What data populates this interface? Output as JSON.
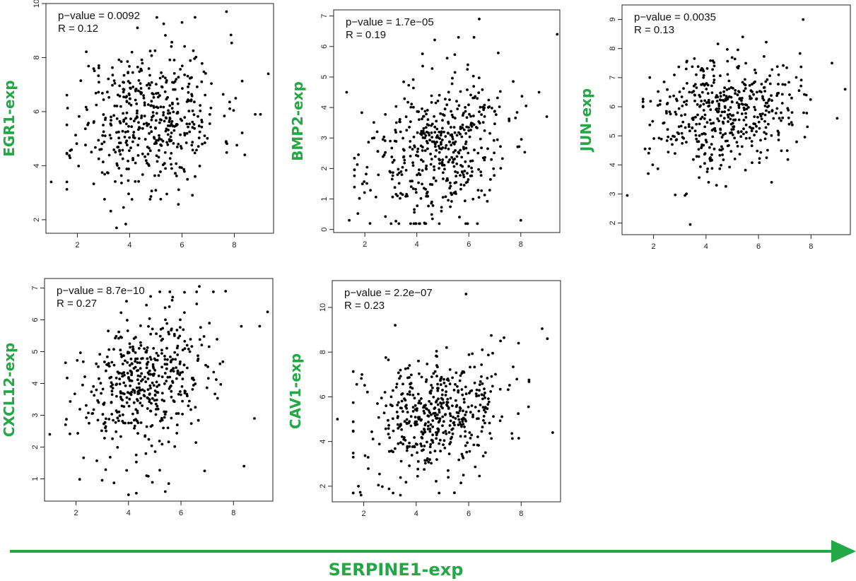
{
  "accent_color": "#22a845",
  "x_label": "SERPINE1-exp",
  "chart_data": [
    {
      "type": "scatter",
      "ylabel": "EGR1-exp",
      "p_value_text": "p−value = 0.0092",
      "r_text": "R = 0.12",
      "xlim": [
        0.8,
        9.5
      ],
      "ylim": [
        1.5,
        10
      ],
      "xticks": [
        2,
        4,
        6,
        8
      ],
      "yticks": [
        2,
        4,
        6,
        8,
        10
      ],
      "n_points": 480,
      "trend": 0.12,
      "y_mean": 5.8,
      "y_sd": 1.35,
      "seed": 11,
      "points": [
        [
          7.7,
          9.7
        ],
        [
          3.5,
          1.7
        ],
        [
          1.0,
          3.4
        ],
        [
          9.3,
          7.4
        ],
        [
          6.0,
          9.3
        ],
        [
          5.3,
          9.25
        ],
        [
          4.3,
          9.1
        ],
        [
          9.0,
          5.9
        ],
        [
          8.8,
          5.9
        ],
        [
          8.4,
          4.4
        ],
        [
          1.6,
          3.4
        ],
        [
          6.5,
          3.6
        ]
      ]
    },
    {
      "type": "scatter",
      "ylabel": "BMP2-exp",
      "p_value_text": "p−value = 1.7e−05",
      "r_text": "R = 0.19",
      "xlim": [
        0.8,
        9.5
      ],
      "ylim": [
        -0.1,
        7.2
      ],
      "xticks": [
        2,
        4,
        6,
        8
      ],
      "yticks": [
        0,
        1,
        2,
        3,
        4,
        5,
        6,
        7
      ],
      "n_points": 480,
      "trend": 0.19,
      "y_mean": 2.6,
      "y_sd": 1.2,
      "seed": 23,
      "points": [
        [
          6.4,
          6.9
        ],
        [
          9.4,
          6.4
        ],
        [
          5.6,
          6.3
        ],
        [
          6.2,
          6.3
        ],
        [
          1.3,
          4.5
        ],
        [
          8.0,
          0.3
        ],
        [
          1.4,
          0.3
        ],
        [
          2.2,
          0.2
        ],
        [
          4.6,
          0.35
        ],
        [
          8.2,
          4.05
        ],
        [
          8.7,
          4.5
        ],
        [
          9.0,
          3.7
        ]
      ]
    },
    {
      "type": "scatter",
      "ylabel": "JUN-exp",
      "p_value_text": "p−value = 0.0035",
      "r_text": "R = 0.13",
      "xlim": [
        0.8,
        9.5
      ],
      "ylim": [
        1.6,
        9.5
      ],
      "xticks": [
        2,
        4,
        6,
        8
      ],
      "yticks": [
        2,
        3,
        4,
        5,
        6,
        7,
        8,
        9
      ],
      "n_points": 480,
      "trend": 0.13,
      "y_mean": 5.9,
      "y_sd": 0.95,
      "seed": 37,
      "points": [
        [
          7.7,
          9.0
        ],
        [
          3.4,
          1.95
        ],
        [
          1.0,
          2.95
        ],
        [
          3.2,
          2.95
        ],
        [
          9.3,
          6.6
        ],
        [
          8.8,
          7.5
        ],
        [
          9.0,
          5.6
        ],
        [
          5.4,
          8.4
        ],
        [
          4.4,
          3.3
        ],
        [
          6.5,
          3.4
        ],
        [
          4.1,
          3.4
        ],
        [
          1.8,
          3.7
        ]
      ]
    },
    {
      "type": "scatter",
      "ylabel": "CXCL12-exp",
      "p_value_text": "p−value = 8.7e−10",
      "r_text": "R = 0.27",
      "xlim": [
        0.8,
        9.5
      ],
      "ylim": [
        0.3,
        7.3
      ],
      "xticks": [
        2,
        4,
        6,
        8
      ],
      "yticks": [
        1,
        2,
        3,
        4,
        5,
        6,
        7
      ],
      "n_points": 480,
      "trend": 0.27,
      "y_mean": 4.0,
      "y_sd": 1.15,
      "seed": 53,
      "points": [
        [
          6.7,
          7.05
        ],
        [
          6.6,
          6.5
        ],
        [
          7.7,
          6.9
        ],
        [
          9.3,
          6.25
        ],
        [
          1.0,
          2.4
        ],
        [
          4.0,
          0.5
        ],
        [
          4.3,
          0.55
        ],
        [
          5.4,
          0.6
        ],
        [
          8.4,
          1.4
        ],
        [
          8.8,
          2.9
        ],
        [
          6.9,
          1.25
        ],
        [
          9.0,
          5.8
        ]
      ]
    },
    {
      "type": "scatter",
      "ylabel": "CAV1-exp",
      "p_value_text": "p−value = 2.2e−07",
      "r_text": "R = 0.23",
      "xlim": [
        0.8,
        9.5
      ],
      "ylim": [
        1.3,
        11.2
      ],
      "xticks": [
        2,
        4,
        6,
        8
      ],
      "yticks": [
        2,
        4,
        6,
        8,
        10
      ],
      "n_points": 480,
      "trend": 0.23,
      "y_mean": 5.1,
      "y_sd": 1.35,
      "seed": 71,
      "points": [
        [
          5.9,
          10.6
        ],
        [
          3.2,
          9.2
        ],
        [
          8.8,
          9.05
        ],
        [
          9.2,
          4.4
        ],
        [
          1.0,
          5.0
        ],
        [
          1.9,
          1.6
        ],
        [
          1.8,
          2.0
        ],
        [
          3.4,
          1.6
        ],
        [
          5.8,
          2.5
        ],
        [
          1.6,
          3.3
        ],
        [
          9.0,
          8.6
        ],
        [
          7.9,
          8.4
        ]
      ]
    }
  ]
}
